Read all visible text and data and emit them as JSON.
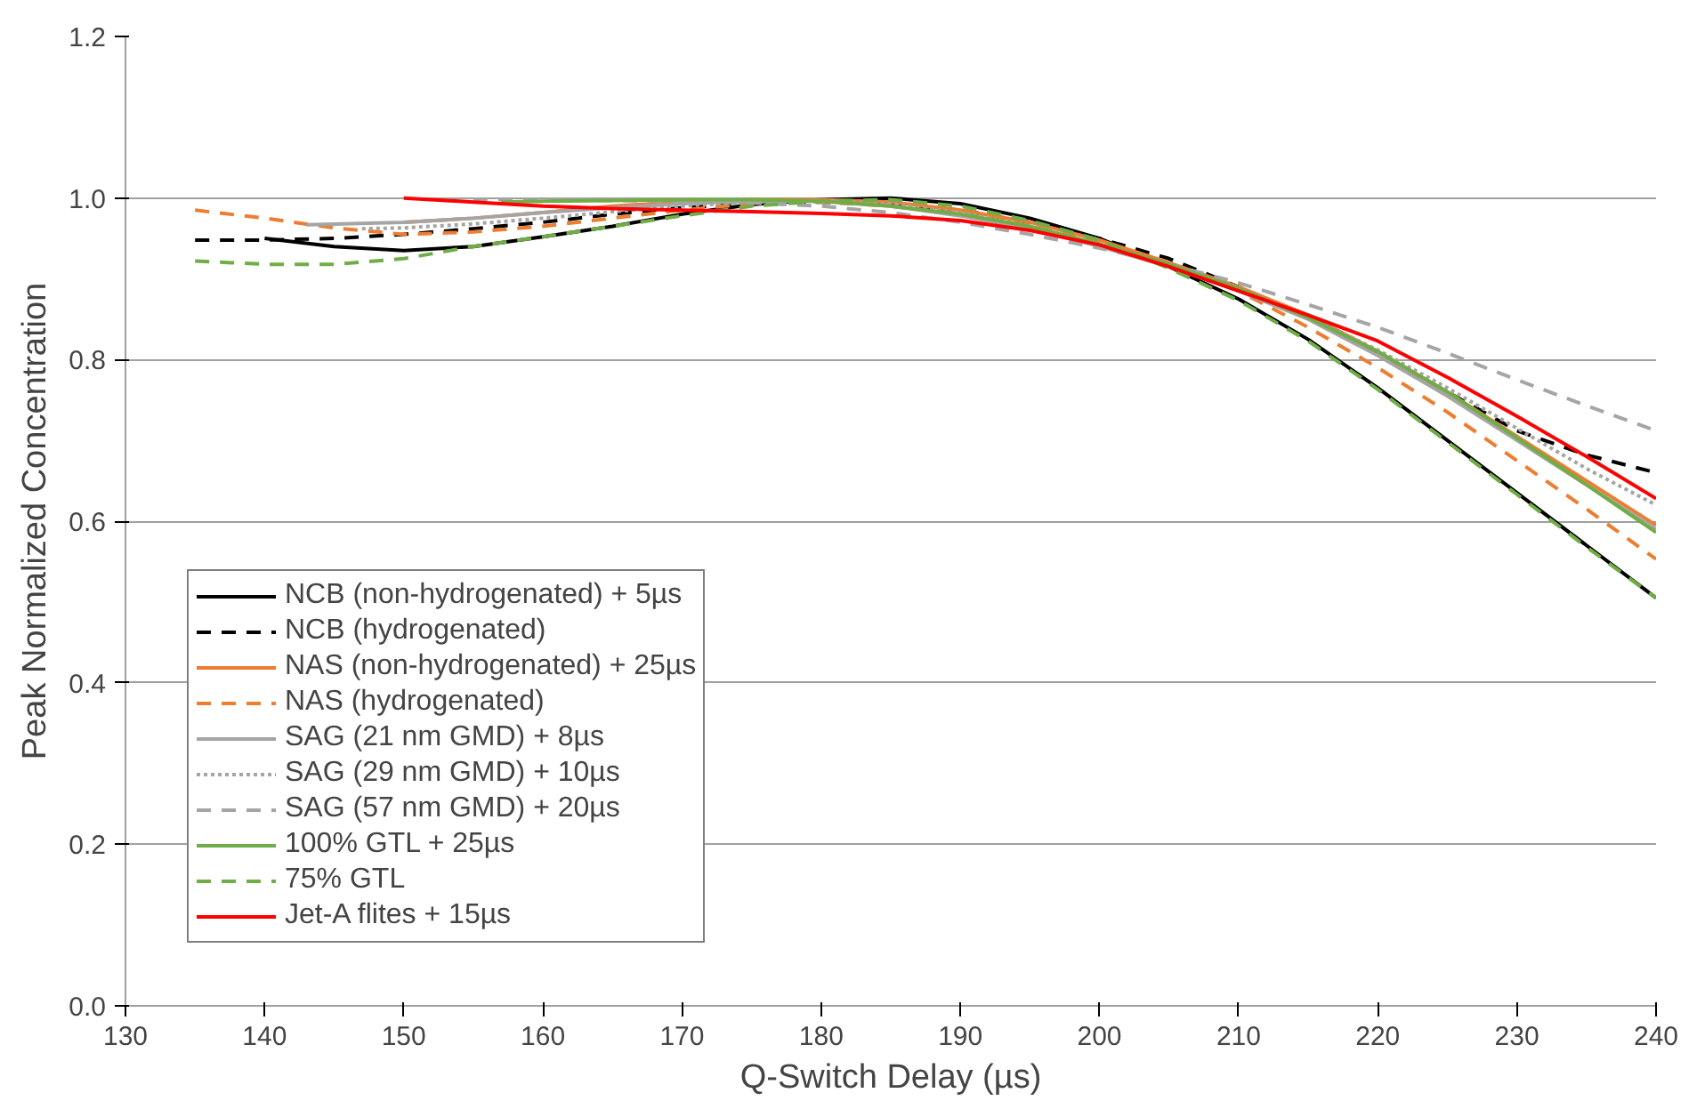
{
  "chart_data": {
    "type": "line",
    "xlabel": "Q-Switch Delay (µs)",
    "ylabel": "Peak Normalized Concentration",
    "xlim": [
      130,
      240
    ],
    "xticks": [
      130,
      140,
      150,
      160,
      170,
      180,
      190,
      200,
      210,
      220,
      230,
      240
    ],
    "ylim": [
      0,
      1.2
    ],
    "yticks": [
      {
        "value": 0,
        "label": "0.0"
      },
      {
        "value": 0.2,
        "label": "0.2"
      },
      {
        "value": 0.4,
        "label": "0.4"
      },
      {
        "value": 0.6,
        "label": "0.6"
      },
      {
        "value": 0.8,
        "label": "0.8"
      },
      {
        "value": 1,
        "label": "1.0"
      },
      {
        "value": 1.2,
        "label": "1.2"
      }
    ],
    "grid": "y",
    "legend": "bottom left",
    "series": [
      {
        "name": "NCB (non-hydrogenated) + 5µs",
        "color": "#000000",
        "line_style": "solid",
        "x": [
          140,
          145,
          150,
          155,
          160,
          165,
          170,
          175,
          180,
          185,
          190,
          195,
          200,
          205,
          210,
          215,
          220,
          225,
          230,
          235,
          240
        ],
        "values": [
          0.95,
          0.94,
          0.935,
          0.94,
          0.952,
          0.965,
          0.98,
          0.992,
          0.998,
          1.0,
          0.993,
          0.975,
          0.95,
          0.915,
          0.875,
          0.825,
          0.765,
          0.7,
          0.635,
          0.57,
          0.505
        ]
      },
      {
        "name": "NCB (hydrogenated)",
        "color": "#000000",
        "line_style": "dashed",
        "x": [
          135,
          140,
          145,
          150,
          155,
          160,
          165,
          170,
          175,
          180,
          185,
          190,
          195,
          200,
          205,
          210,
          215,
          220,
          225,
          230,
          235,
          240
        ],
        "values": [
          0.948,
          0.948,
          0.95,
          0.955,
          0.962,
          0.97,
          0.98,
          0.988,
          0.993,
          0.995,
          0.993,
          0.985,
          0.97,
          0.95,
          0.925,
          0.89,
          0.852,
          0.808,
          0.76,
          0.712,
          0.682,
          0.66
        ]
      },
      {
        "name": "NAS (non-hydrogenated) + 25µs",
        "color": "#ed7d31",
        "line_style": "solid",
        "x": [
          150,
          155,
          160,
          165,
          170,
          175,
          180,
          185,
          190,
          195,
          200,
          205,
          210,
          215,
          220,
          225,
          230,
          235,
          240
        ],
        "values": [
          0.97,
          0.975,
          0.982,
          0.99,
          0.995,
          0.998,
          0.998,
          0.995,
          0.985,
          0.97,
          0.948,
          0.92,
          0.89,
          0.855,
          0.81,
          0.76,
          0.705,
          0.65,
          0.595
        ]
      },
      {
        "name": "NAS (hydrogenated)",
        "color": "#ed7d31",
        "line_style": "dashed",
        "x": [
          135,
          140,
          145,
          150,
          155,
          160,
          165,
          170,
          175,
          180,
          185,
          190,
          195,
          200,
          205,
          210,
          215,
          220,
          225,
          230,
          235,
          240
        ],
        "values": [
          0.985,
          0.975,
          0.963,
          0.955,
          0.958,
          0.965,
          0.975,
          0.985,
          0.993,
          0.995,
          0.99,
          0.98,
          0.965,
          0.945,
          0.92,
          0.885,
          0.84,
          0.79,
          0.735,
          0.675,
          0.615,
          0.553
        ]
      },
      {
        "name": "SAG (21 nm GMD) + 8µs",
        "color": "#a5a5a5",
        "line_style": "solid",
        "x": [
          143,
          150,
          155,
          160,
          165,
          170,
          175,
          180,
          185,
          190,
          195,
          200,
          205,
          210,
          215,
          220,
          225,
          230,
          235,
          240
        ],
        "values": [
          0.967,
          0.97,
          0.975,
          0.982,
          0.988,
          0.993,
          0.996,
          0.996,
          0.99,
          0.978,
          0.962,
          0.94,
          0.915,
          0.885,
          0.85,
          0.805,
          0.755,
          0.7,
          0.645,
          0.59
        ]
      },
      {
        "name": "SAG (29 nm GMD) + 10µs",
        "color": "#a5a5a5",
        "line_style": "dotted",
        "x": [
          147,
          150,
          155,
          160,
          165,
          170,
          175,
          180,
          185,
          190,
          195,
          200,
          205,
          210,
          215,
          220,
          225,
          230,
          235,
          240
        ],
        "values": [
          0.962,
          0.963,
          0.968,
          0.975,
          0.983,
          0.99,
          0.995,
          0.997,
          0.993,
          0.982,
          0.965,
          0.943,
          0.918,
          0.888,
          0.853,
          0.812,
          0.765,
          0.715,
          0.665,
          0.62
        ]
      },
      {
        "name": "SAG (57 nm GMD) + 20µs",
        "color": "#a5a5a5",
        "line_style": "dashed",
        "x": [
          155,
          160,
          165,
          170,
          175,
          180,
          185,
          190,
          195,
          200,
          205,
          210,
          215,
          220,
          225,
          230,
          235,
          240
        ],
        "values": [
          0.998,
          0.998,
          0.997,
          0.996,
          0.994,
          0.99,
          0.982,
          0.97,
          0.955,
          0.938,
          0.918,
          0.895,
          0.868,
          0.84,
          0.808,
          0.775,
          0.743,
          0.712
        ]
      },
      {
        "name": "100% GTL + 25µs",
        "color": "#70ad47",
        "line_style": "solid",
        "x": [
          157,
          160,
          165,
          170,
          175,
          180,
          185,
          190,
          195,
          200,
          205,
          210,
          215,
          220,
          225,
          230,
          235,
          240
        ],
        "values": [
          0.995,
          0.996,
          0.997,
          0.998,
          0.998,
          0.996,
          0.99,
          0.98,
          0.965,
          0.943,
          0.918,
          0.888,
          0.852,
          0.81,
          0.76,
          0.703,
          0.645,
          0.586
        ]
      },
      {
        "name": "75% GTL",
        "color": "#70ad47",
        "line_style": "dashed",
        "x": [
          135,
          140,
          145,
          150,
          155,
          160,
          165,
          170,
          175,
          180,
          185,
          190,
          195,
          200,
          205,
          210,
          215,
          220,
          225,
          230,
          235,
          240
        ],
        "values": [
          0.922,
          0.918,
          0.918,
          0.925,
          0.94,
          0.952,
          0.965,
          0.978,
          0.99,
          0.996,
          0.998,
          0.99,
          0.972,
          0.948,
          0.913,
          0.873,
          0.823,
          0.763,
          0.698,
          0.633,
          0.568,
          0.505
        ]
      },
      {
        "name": "Jet-A flites + 15µs",
        "color": "#ff0000",
        "line_style": "solid",
        "x": [
          150,
          155,
          160,
          165,
          170,
          175,
          180,
          185,
          190,
          195,
          200,
          205,
          210,
          215,
          220,
          225,
          230,
          235,
          240
        ],
        "values": [
          1.0,
          0.995,
          0.99,
          0.987,
          0.985,
          0.983,
          0.981,
          0.978,
          0.972,
          0.96,
          0.942,
          0.915,
          0.885,
          0.855,
          0.823,
          0.778,
          0.73,
          0.68,
          0.628
        ]
      }
    ]
  }
}
